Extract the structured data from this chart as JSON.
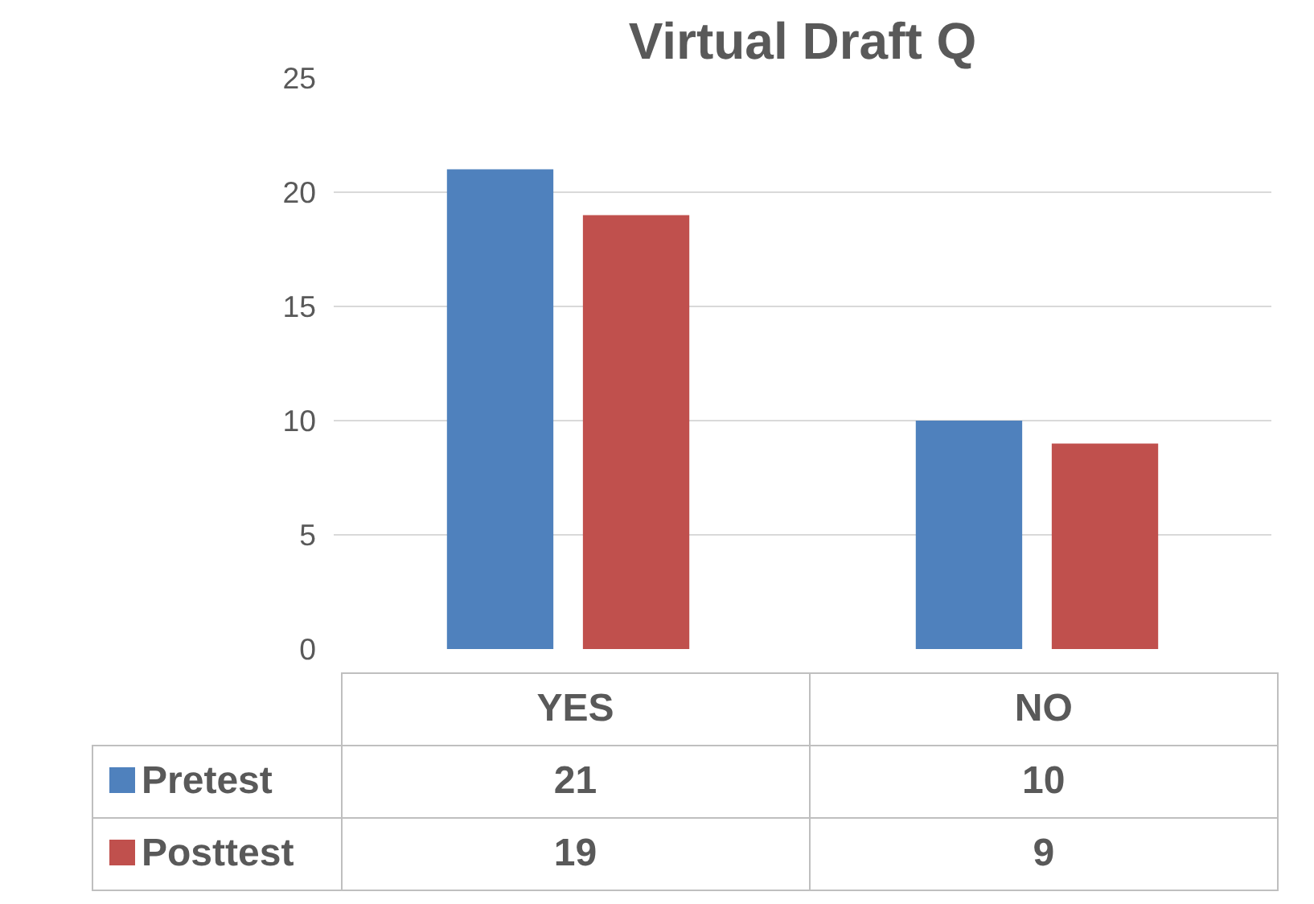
{
  "chart_data": {
    "type": "bar",
    "title": "Virtual Draft Q",
    "categories": [
      "YES",
      "NO"
    ],
    "series": [
      {
        "name": "Pretest",
        "color": "#4f81bd",
        "values": [
          21,
          10
        ]
      },
      {
        "name": "Posttest",
        "color": "#c0504d",
        "values": [
          19,
          9
        ]
      }
    ],
    "ylim": [
      0,
      25
    ],
    "yticks": [
      0,
      5,
      10,
      15,
      20,
      25
    ],
    "grid": "y",
    "legend": "bottom",
    "data_labels": true
  }
}
